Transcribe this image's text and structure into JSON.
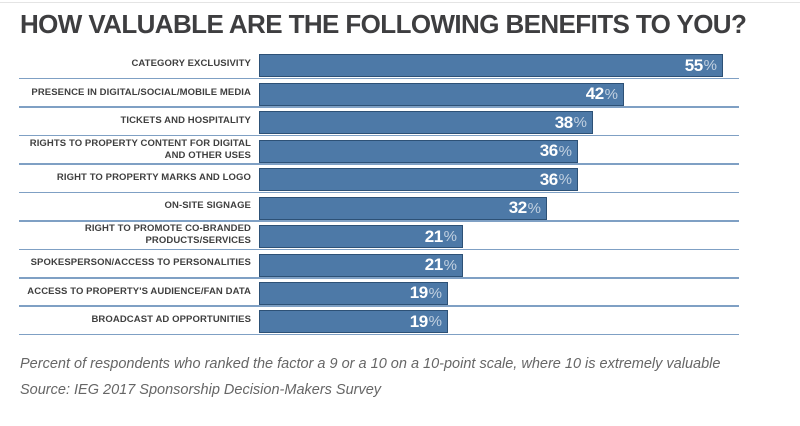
{
  "chart_data": {
    "type": "bar",
    "orientation": "horizontal",
    "title": "HOW VALUABLE ARE THE FOLLOWING BENEFITS TO YOU?",
    "unit": "%",
    "categories": [
      "CATEGORY EXCLUSIVITY",
      "PRESENCE IN DIGITAL/SOCIAL/MOBILE MEDIA",
      "TICKETS AND HOSPITALITY",
      "RIGHTS TO PROPERTY CONTENT FOR DIGITAL\nAND OTHER USES",
      "RIGHT TO PROPERTY MARKS AND LOGO",
      "ON-SITE SIGNAGE",
      "RIGHT TO PROMOTE CO-BRANDED\nPRODUCTS/SERVICES",
      "SPOKESPERSON/ACCESS TO PERSONALITIES",
      "ACCESS TO PROPERTY'S AUDIENCE/FAN DATA",
      "BROADCAST AD OPPORTUNITIES"
    ],
    "values": [
      55,
      42,
      38,
      36,
      36,
      32,
      21,
      21,
      19,
      19
    ],
    "xlim": [
      0,
      60
    ],
    "grid": false,
    "legend": "none",
    "value_label_position": "inside-end",
    "footnote": "Percent of respondents who ranked the factor a 9 or a 10 on a 10-point scale, where 10 is extremely valuable",
    "source": "Source: IEG 2017 Sponsorship Decision-Makers Survey",
    "colors": {
      "bar_fill": "#4d79a7",
      "bar_border": "#2d5176",
      "row_separator": "#7fa0c4",
      "value_text": "#ffffff",
      "percent_sign": "rgba(255,255,255,0.65)",
      "title_text": "#3e3e40",
      "label_text": "#3f3f3f",
      "footnote_text": "#666666"
    }
  }
}
